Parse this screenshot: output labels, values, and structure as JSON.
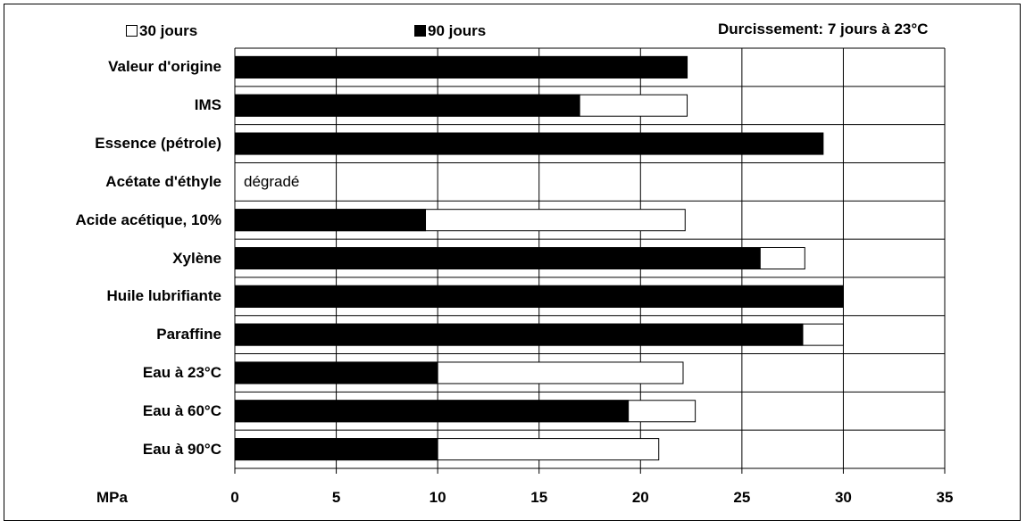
{
  "legend": {
    "item_30": "30 jours",
    "item_90": "90 jours"
  },
  "note": "Durcissement: 7 jours à 23°C",
  "colors": {
    "bar_90": "#000000",
    "bar_30": "#ffffff",
    "grid": "#000000"
  },
  "chart_data": {
    "type": "bar",
    "orientation": "horizontal",
    "categories": [
      "Valeur d'origine",
      "IMS",
      "Essence (pétrole)",
      "Acétate d'éthyle",
      "Acide acétique, 10%",
      "Xylène",
      "Huile lubrifiante",
      "Paraffine",
      "Eau à 23°C",
      "Eau à 60°C",
      "Eau à 90°C"
    ],
    "series": [
      {
        "name": "30 jours",
        "values": [
          22.3,
          22.3,
          29.0,
          null,
          22.2,
          28.1,
          30.0,
          30.0,
          22.1,
          22.7,
          20.9
        ]
      },
      {
        "name": "90 jours",
        "values": [
          22.3,
          17.0,
          29.0,
          null,
          9.4,
          25.9,
          30.0,
          28.0,
          10.0,
          19.4,
          10.0
        ]
      }
    ],
    "annotations": [
      {
        "category": "Acétate d'éthyle",
        "text": "dégradé"
      }
    ],
    "xlabel": "MPa",
    "xlim": [
      0,
      35
    ],
    "xticks": [
      "0",
      "5",
      "10",
      "15",
      "20",
      "25",
      "30",
      "35"
    ],
    "grid": true,
    "legend_position": "top"
  }
}
